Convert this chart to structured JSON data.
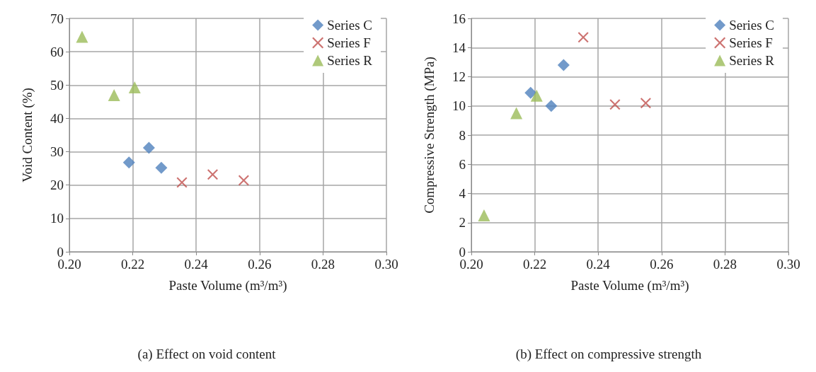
{
  "chart_data": [
    {
      "type": "scatter",
      "xlabel": "Paste Volume (m³/m³)",
      "ylabel": "Void Content (%)",
      "annotations": [
        "(a) Effect on void content"
      ],
      "xlim": [
        0.2,
        0.3
      ],
      "xticks": [
        {
          "value": 0.2,
          "label": "0.20"
        },
        {
          "value": 0.22,
          "label": "0.22"
        },
        {
          "value": 0.24,
          "label": "0.24"
        },
        {
          "value": 0.26,
          "label": "0.26"
        },
        {
          "value": 0.28,
          "label": "0.28"
        },
        {
          "value": 0.3,
          "label": "0.30"
        }
      ],
      "ylim": [
        0,
        70
      ],
      "yticks": [
        0,
        10,
        20,
        30,
        40,
        50,
        60,
        70
      ],
      "grid": true,
      "legend": "top right",
      "series": [
        {
          "name": "Series C",
          "color": "#4f81bd",
          "marker": "diamond",
          "x": [
            0.2188,
            0.2251,
            0.229
          ],
          "values": [
            26.8,
            31.2,
            25.2
          ]
        },
        {
          "name": "Series F",
          "color": "#c0504d",
          "marker": "cross",
          "x": [
            0.2355,
            0.2452,
            0.255
          ],
          "values": [
            20.8,
            23.2,
            21.4
          ]
        },
        {
          "name": "Series R",
          "color": "#9bbb59",
          "marker": "triangle",
          "x": [
            0.204,
            0.2141,
            0.2206
          ],
          "values": [
            64.5,
            47,
            49.3
          ]
        }
      ]
    },
    {
      "type": "scatter",
      "xlabel": "Paste Volume (m³/m³)",
      "ylabel": "Compressive Strength (MPa)",
      "annotations": [
        "(b) Effect on compressive strength"
      ],
      "xlim": [
        0.2,
        0.3
      ],
      "xticks": [
        {
          "value": 0.2,
          "label": "0.20"
        },
        {
          "value": 0.22,
          "label": "0.22"
        },
        {
          "value": 0.24,
          "label": "0.24"
        },
        {
          "value": 0.26,
          "label": "0.26"
        },
        {
          "value": 0.28,
          "label": "0.28"
        },
        {
          "value": 0.3,
          "label": "0.30"
        }
      ],
      "ylim": [
        0,
        16
      ],
      "yticks": [
        0,
        2,
        4,
        6,
        8,
        10,
        12,
        14,
        16
      ],
      "grid": true,
      "legend": "top right",
      "series": [
        {
          "name": "Series C",
          "color": "#4f81bd",
          "marker": "diamond",
          "x": [
            0.2187,
            0.2252,
            0.2291
          ],
          "values": [
            10.9,
            10.0,
            12.8
          ]
        },
        {
          "name": "Series F",
          "color": "#c0504d",
          "marker": "cross",
          "x": [
            0.2353,
            0.2453,
            0.255
          ],
          "values": [
            14.7,
            10.1,
            10.2
          ]
        },
        {
          "name": "Series R",
          "color": "#9bbb59",
          "marker": "triangle",
          "x": [
            0.204,
            0.2142,
            0.2206
          ],
          "values": [
            2.5,
            9.5,
            10.7
          ]
        }
      ]
    }
  ]
}
